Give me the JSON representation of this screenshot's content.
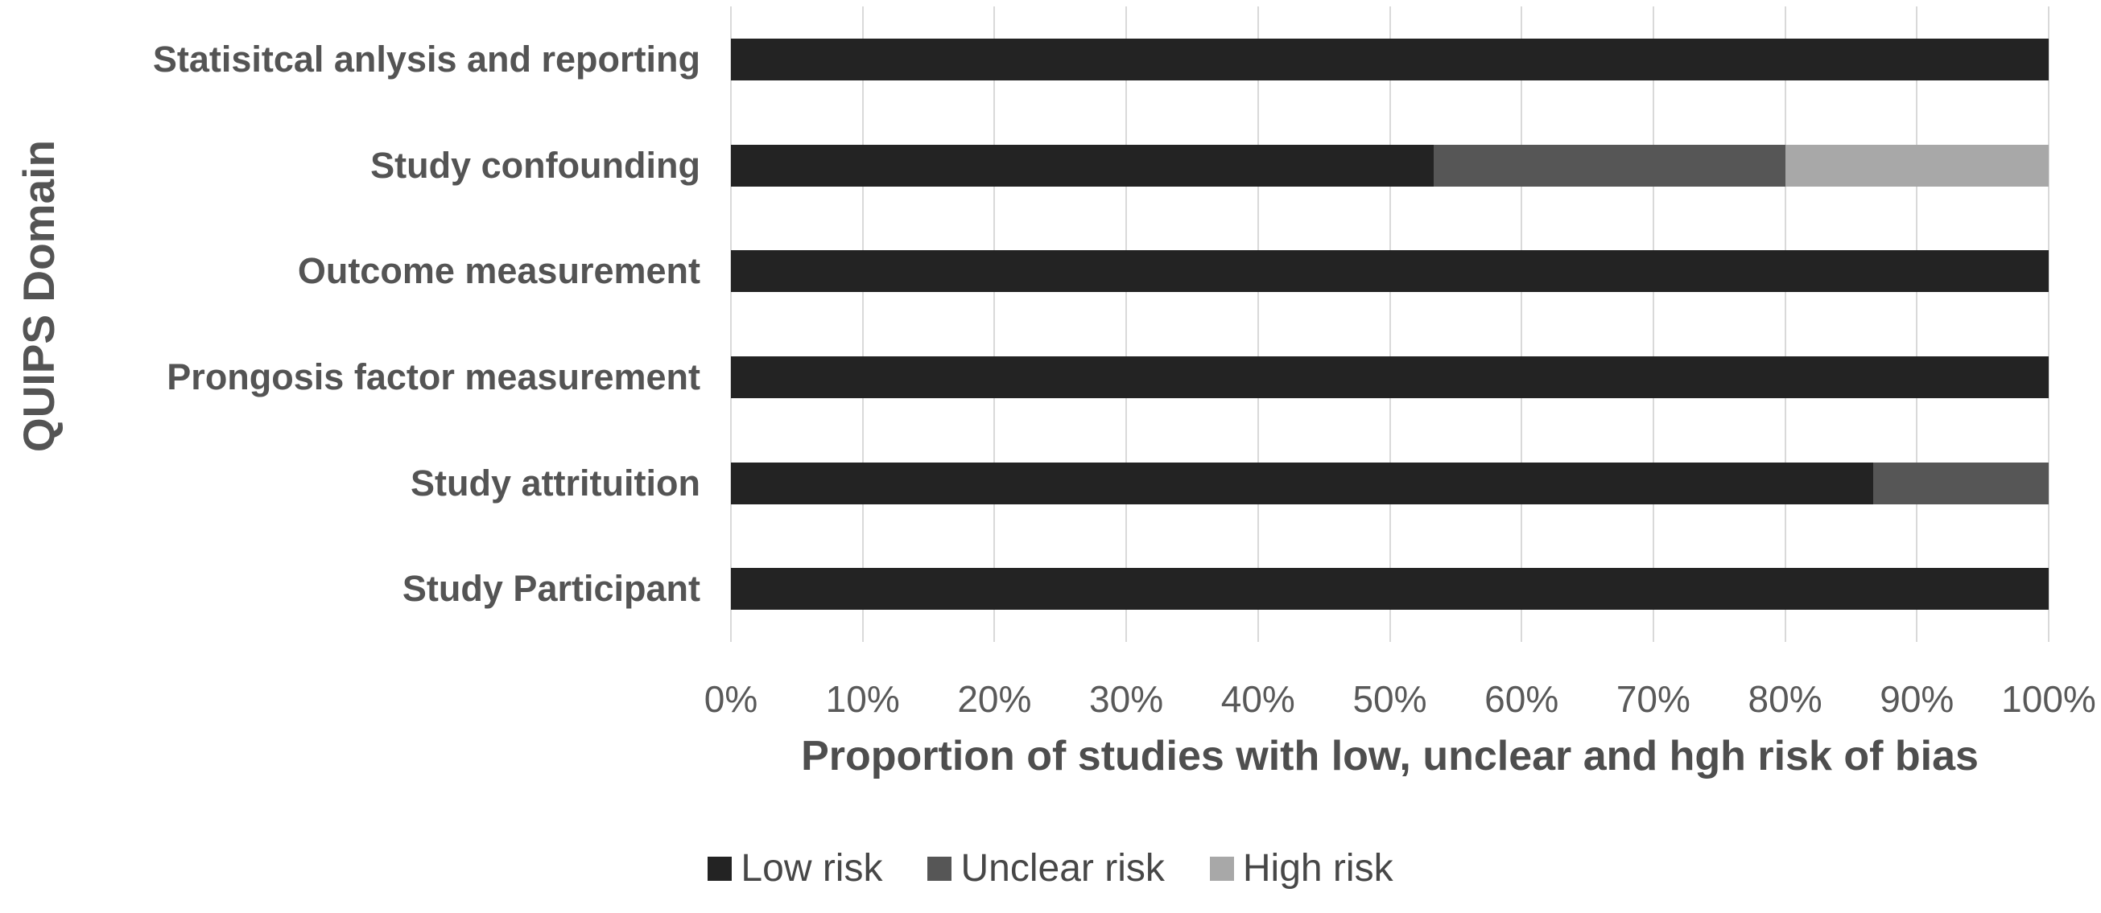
{
  "chart_data": {
    "type": "bar",
    "orientation": "horizontal",
    "stacked": true,
    "title": "",
    "xlabel": "Proportion of studies with low, unclear and hgh risk of bias",
    "ylabel": "QUIPS Domain",
    "categories": [
      "Statisitcal anlysis and reporting",
      "Study confounding",
      "Outcome measurement",
      "Prongosis factor measurement",
      "Study attrituition",
      "Study Participant"
    ],
    "series": [
      {
        "name": "Low risk",
        "color": "#232323",
        "values": [
          100,
          53.3,
          100,
          100,
          86.7,
          100
        ]
      },
      {
        "name": "Unclear risk",
        "color": "#565656",
        "values": [
          0,
          26.7,
          0,
          0,
          13.3,
          0
        ]
      },
      {
        "name": "High risk",
        "color": "#a8a8a8",
        "values": [
          0,
          20,
          0,
          0,
          0,
          0
        ]
      }
    ],
    "x_ticks": [
      "0%",
      "10%",
      "20%",
      "30%",
      "40%",
      "50%",
      "60%",
      "70%",
      "80%",
      "90%",
      "100%"
    ],
    "xlim": [
      0,
      100
    ],
    "grid": "vertical",
    "gridline_color": "#d9d9d9",
    "background_color": "#ffffff",
    "text_color": "#595959",
    "legend_position": "bottom"
  }
}
